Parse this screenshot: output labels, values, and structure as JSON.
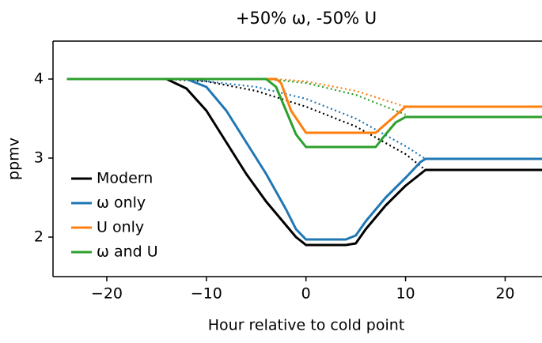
{
  "chart_data": {
    "type": "line",
    "title": "+50% ω, -50% U",
    "xlabel": "Hour relative to cold point",
    "ylabel": "ppmv",
    "xlim": [
      -25.4,
      23.7
    ],
    "ylim": [
      1.5,
      4.48
    ],
    "xticks": [
      {
        "value": -20,
        "label": "−20"
      },
      {
        "value": -10,
        "label": "−10"
      },
      0,
      10,
      20
    ],
    "yticks": [
      2,
      3,
      4
    ],
    "legend": "lower left",
    "series": [
      {
        "name": "Modern",
        "color": "#000000",
        "style": "solid",
        "x": [
          -24,
          -14,
          -12,
          -10,
          -8,
          -6,
          -4,
          -2,
          -1,
          0,
          4,
          5,
          6,
          8,
          10,
          12,
          24
        ],
        "values": [
          4,
          4,
          3.88,
          3.6,
          3.2,
          2.8,
          2.45,
          2.15,
          2.0,
          1.9,
          1.9,
          1.92,
          2.1,
          2.4,
          2.65,
          2.85,
          2.85
        ]
      },
      {
        "name": "ω only",
        "color": "#1f77b4",
        "style": "solid",
        "x": [
          -24,
          -12,
          -10,
          -8,
          -6,
          -4,
          -2,
          -1,
          0,
          4,
          5,
          6,
          8,
          10,
          11.5,
          12,
          24
        ],
        "values": [
          4,
          4,
          3.9,
          3.6,
          3.2,
          2.8,
          2.35,
          2.1,
          1.97,
          1.97,
          2.02,
          2.2,
          2.5,
          2.75,
          2.95,
          2.99,
          2.99
        ]
      },
      {
        "name": "U only",
        "color": "#ff7f0e",
        "style": "solid",
        "x": [
          -24,
          -3,
          -2.5,
          -1.5,
          0,
          7,
          10,
          24
        ],
        "values": [
          4,
          4,
          3.95,
          3.6,
          3.32,
          3.32,
          3.65,
          3.65
        ]
      },
      {
        "name": "ω and U",
        "color": "#2ca02c",
        "style": "solid",
        "x": [
          -24,
          -4,
          -3,
          -2,
          -1,
          0,
          7,
          8,
          9,
          10,
          24
        ],
        "values": [
          4,
          4,
          3.9,
          3.6,
          3.3,
          3.14,
          3.14,
          3.3,
          3.45,
          3.52,
          3.52
        ]
      },
      {
        "color": "#000000",
        "style": "dotted",
        "x": [
          -14,
          -10,
          -5,
          0,
          5,
          10,
          12
        ],
        "values": [
          4,
          3.97,
          3.85,
          3.65,
          3.4,
          3.05,
          2.85
        ]
      },
      {
        "color": "#1f77b4",
        "style": "dotted",
        "x": [
          -12,
          -5,
          0,
          5,
          10,
          12
        ],
        "values": [
          4,
          3.9,
          3.75,
          3.5,
          3.15,
          2.99
        ]
      },
      {
        "color": "#ff7f0e",
        "style": "dotted",
        "x": [
          -3,
          0,
          5,
          10
        ],
        "values": [
          4,
          3.97,
          3.85,
          3.65
        ]
      },
      {
        "color": "#2ca02c",
        "style": "dotted",
        "x": [
          -4,
          0,
          5,
          10
        ],
        "values": [
          4,
          3.95,
          3.8,
          3.55
        ]
      }
    ]
  }
}
